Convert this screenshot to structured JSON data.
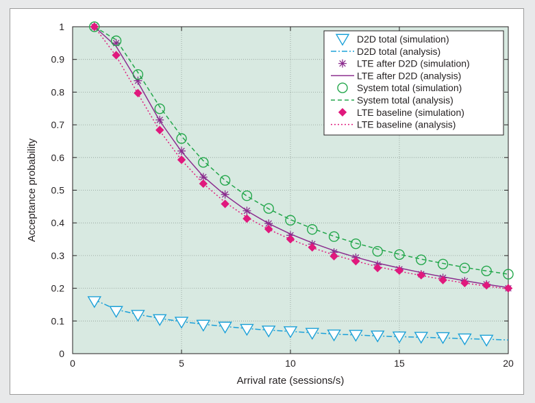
{
  "chart_data": {
    "type": "line",
    "xlabel": "Arrival rate (sessions/s)",
    "ylabel": "Acceptance probability",
    "xlim": [
      0,
      20
    ],
    "ylim": [
      0,
      1
    ],
    "xticks": [
      0,
      5,
      10,
      15,
      20
    ],
    "yticks": [
      0,
      0.1,
      0.2,
      0.3,
      0.4,
      0.5,
      0.6,
      0.7,
      0.8,
      0.9,
      1
    ],
    "xtick_labels": [
      "0",
      "5",
      "10",
      "15",
      "20"
    ],
    "ytick_labels": [
      "0",
      "0.1",
      "0.2",
      "0.3",
      "0.4",
      "0.5",
      "0.6",
      "0.7",
      "0.8",
      "0.9",
      "1"
    ],
    "grid": true,
    "legend_position": "top-right",
    "colors": {
      "plot_bg": "#d8e9e1",
      "grid": "#8c9a94",
      "d2d": "#1aa0d8",
      "lte_after": "#8b2c8e",
      "system": "#22a64a",
      "lte_baseline": "#e0197d"
    },
    "series": [
      {
        "name": "D2D total (simulation)",
        "kind": "markers",
        "marker": "triangle-down",
        "color_key": "d2d",
        "x": [
          1,
          2,
          3,
          4,
          5,
          6,
          7,
          8,
          9,
          10,
          11,
          12,
          13,
          14,
          15,
          16,
          17,
          18,
          19
        ],
        "y": [
          0.16,
          0.13,
          0.118,
          0.105,
          0.097,
          0.088,
          0.082,
          0.075,
          0.07,
          0.068,
          0.063,
          0.058,
          0.057,
          0.055,
          0.052,
          0.051,
          0.05,
          0.046,
          0.042
        ]
      },
      {
        "name": "D2D total (analysis)",
        "kind": "line",
        "dash": "8,3,2,3",
        "color_key": "d2d",
        "x": [
          1,
          2,
          3,
          4,
          5,
          6,
          7,
          8,
          9,
          10,
          11,
          12,
          13,
          14,
          15,
          16,
          17,
          18,
          19,
          20
        ],
        "y": [
          0.165,
          0.135,
          0.12,
          0.108,
          0.098,
          0.09,
          0.083,
          0.077,
          0.072,
          0.068,
          0.064,
          0.06,
          0.057,
          0.054,
          0.052,
          0.05,
          0.048,
          0.046,
          0.044,
          0.042
        ]
      },
      {
        "name": "LTE after D2D (simulation)",
        "kind": "markers",
        "marker": "asterisk",
        "color_key": "lte_after",
        "x": [
          1,
          2,
          3,
          4,
          5,
          6,
          7,
          8,
          9,
          10,
          11,
          12,
          13,
          14,
          15,
          16,
          17,
          18,
          19,
          20
        ],
        "y": [
          1.0,
          0.95,
          0.835,
          0.715,
          0.62,
          0.54,
          0.487,
          0.437,
          0.398,
          0.362,
          0.335,
          0.31,
          0.294,
          0.272,
          0.258,
          0.243,
          0.232,
          0.222,
          0.212,
          0.2
        ]
      },
      {
        "name": "LTE after D2D (analysis)",
        "kind": "line",
        "dash": "",
        "color_key": "lte_after",
        "x": [
          1,
          2,
          3,
          4,
          5,
          6,
          7,
          8,
          9,
          10,
          11,
          12,
          13,
          14,
          15,
          16,
          17,
          18,
          19,
          20
        ],
        "y": [
          1.0,
          0.94,
          0.83,
          0.712,
          0.618,
          0.542,
          0.485,
          0.437,
          0.398,
          0.366,
          0.339,
          0.315,
          0.295,
          0.277,
          0.262,
          0.248,
          0.235,
          0.223,
          0.212,
          0.202
        ]
      },
      {
        "name": "System total (simulation)",
        "kind": "markers",
        "marker": "circle",
        "color_key": "system",
        "x": [
          1,
          2,
          3,
          4,
          5,
          6,
          7,
          8,
          9,
          10,
          11,
          12,
          13,
          14,
          15,
          16,
          17,
          18,
          19,
          20
        ],
        "y": [
          1.0,
          0.957,
          0.854,
          0.749,
          0.658,
          0.585,
          0.53,
          0.483,
          0.444,
          0.408,
          0.38,
          0.358,
          0.336,
          0.313,
          0.303,
          0.287,
          0.274,
          0.262,
          0.253,
          0.243
        ]
      },
      {
        "name": "System total (analysis)",
        "kind": "line",
        "dash": "6,4",
        "color_key": "system",
        "x": [
          1,
          2,
          3,
          4,
          5,
          6,
          7,
          8,
          9,
          10,
          11,
          12,
          13,
          14,
          15,
          16,
          17,
          18,
          19,
          20
        ],
        "y": [
          1.0,
          0.96,
          0.86,
          0.755,
          0.665,
          0.59,
          0.53,
          0.482,
          0.443,
          0.41,
          0.383,
          0.359,
          0.338,
          0.32,
          0.304,
          0.289,
          0.276,
          0.264,
          0.253,
          0.243
        ]
      },
      {
        "name": "LTE baseline (simulation)",
        "kind": "markers",
        "marker": "diamond",
        "color_key": "lte_baseline",
        "x": [
          1,
          2,
          3,
          4,
          5,
          6,
          7,
          8,
          9,
          10,
          11,
          12,
          13,
          14,
          15,
          16,
          17,
          18,
          19,
          20
        ],
        "y": [
          1.0,
          0.913,
          0.797,
          0.684,
          0.593,
          0.52,
          0.458,
          0.413,
          0.381,
          0.35,
          0.325,
          0.298,
          0.283,
          0.262,
          0.254,
          0.24,
          0.225,
          0.216,
          0.209,
          0.2
        ]
      },
      {
        "name": "LTE baseline (analysis)",
        "kind": "line",
        "dash": "2,3",
        "color_key": "lte_baseline",
        "x": [
          1,
          2,
          3,
          4,
          5,
          6,
          7,
          8,
          9,
          10,
          11,
          12,
          13,
          14,
          15,
          16,
          17,
          18,
          19,
          20
        ],
        "y": [
          1.0,
          0.91,
          0.795,
          0.682,
          0.592,
          0.52,
          0.463,
          0.417,
          0.38,
          0.35,
          0.324,
          0.302,
          0.283,
          0.266,
          0.252,
          0.239,
          0.227,
          0.216,
          0.207,
          0.198
        ]
      }
    ]
  }
}
